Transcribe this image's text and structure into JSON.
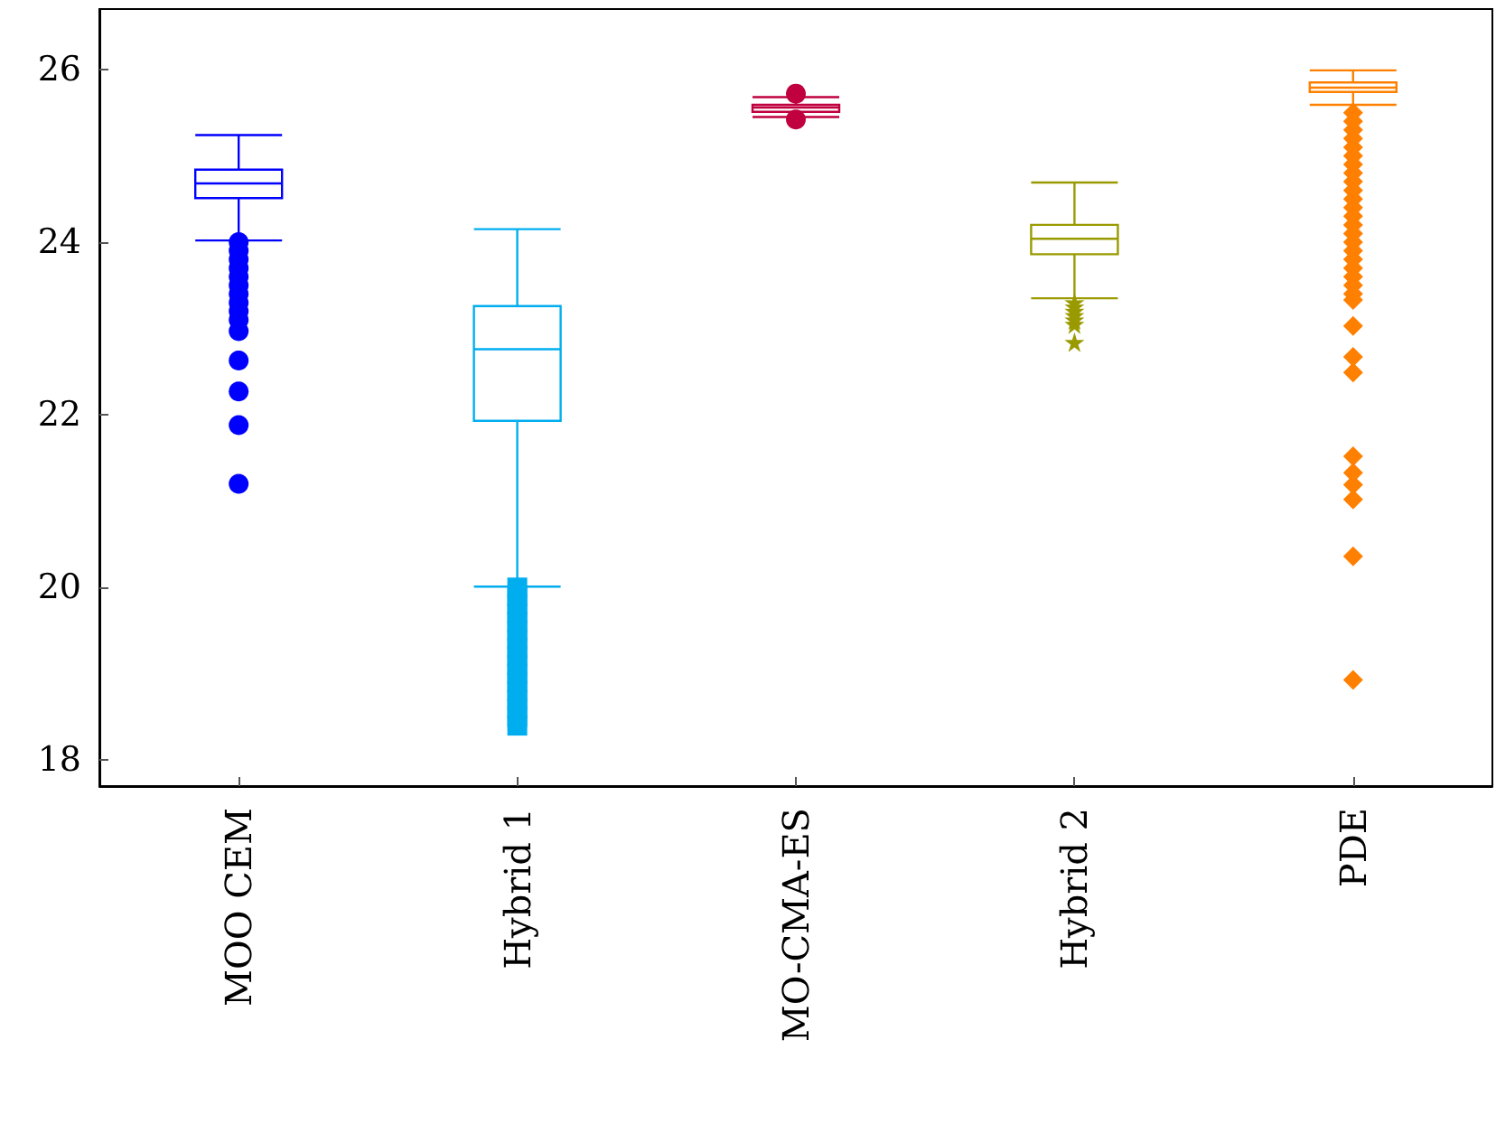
{
  "chart_data": {
    "type": "box",
    "categories": [
      "MOO CEM",
      "Hybrid 1",
      "MO-CMA-ES",
      "Hybrid 2",
      "PDE"
    ],
    "ylim": [
      17.7,
      26.7
    ],
    "yticks": [
      18,
      20,
      22,
      24,
      26
    ],
    "grid": false,
    "series": [
      {
        "color": "#0000ff",
        "marker": "circle",
        "boxes": [
          {
            "low": 24.02,
            "q1": 24.51,
            "median": 24.68,
            "q3": 24.84,
            "high": 25.24,
            "outliers": [
              24.0,
              23.9,
              23.8,
              23.7,
              23.6,
              23.5,
              23.4,
              23.3,
              23.2,
              23.1,
              22.97,
              22.63,
              22.27,
              21.88,
              21.2
            ]
          },
          null,
          null,
          null,
          null
        ]
      },
      {
        "color": "#00aeef",
        "marker": "square",
        "boxes": [
          null,
          {
            "low": 20.01,
            "q1": 21.93,
            "median": 22.76,
            "q3": 23.26,
            "high": 24.15,
            "outliers": [
              20.0,
              19.9,
              19.8,
              19.7,
              19.6,
              19.5,
              19.4,
              19.3,
              19.2,
              19.1,
              19.0,
              18.9,
              18.8,
              18.7,
              18.6,
              18.5,
              18.4
            ]
          },
          null,
          null,
          null
        ]
      },
      {
        "color": "#c0003f",
        "marker": "circle",
        "boxes": [
          null,
          null,
          {
            "low": 25.45,
            "q1": 25.51,
            "median": 25.56,
            "q3": 25.59,
            "high": 25.68,
            "outliers": [
              25.72,
              25.42
            ]
          },
          null,
          null
        ]
      },
      {
        "color": "#9a9a00",
        "marker": "star",
        "boxes": [
          null,
          null,
          null,
          {
            "low": 23.35,
            "q1": 23.86,
            "median": 24.04,
            "q3": 24.2,
            "high": 24.69,
            "outliers": [
              23.3,
              23.25,
              23.2,
              23.15,
              23.1,
              23.05,
              22.84
            ]
          },
          null
        ]
      },
      {
        "color": "#ff8000",
        "marker": "diamond",
        "boxes": [
          null,
          null,
          null,
          null,
          {
            "low": 25.59,
            "q1": 25.74,
            "median": 25.79,
            "q3": 25.85,
            "high": 25.99,
            "outliers": [
              25.5,
              25.4,
              25.3,
              25.2,
              25.1,
              25.0,
              24.9,
              24.8,
              24.7,
              24.6,
              24.5,
              24.4,
              24.3,
              24.2,
              24.1,
              24.0,
              23.9,
              23.8,
              23.7,
              23.6,
              23.5,
              23.4,
              23.33,
              23.03,
              22.67,
              22.49,
              21.52,
              21.33,
              21.19,
              21.02,
              20.36,
              18.93
            ]
          }
        ]
      }
    ]
  }
}
